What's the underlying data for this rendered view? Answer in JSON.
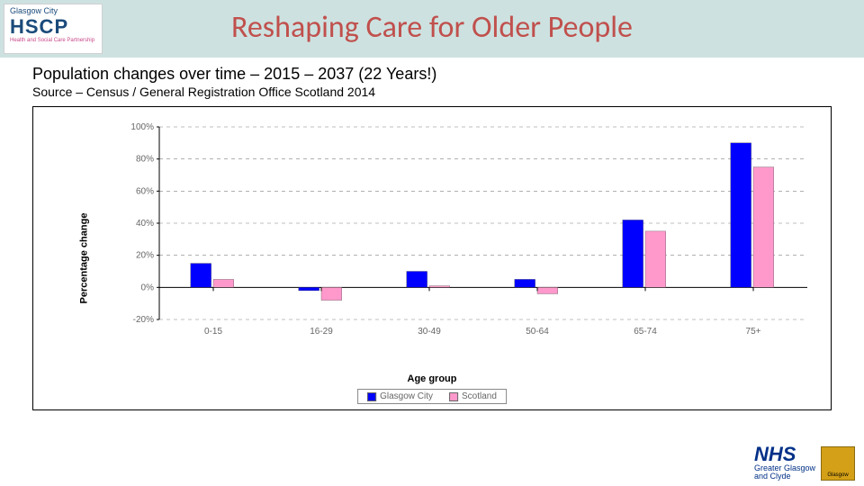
{
  "header": {
    "band_color": "#cde2e0",
    "title": "Reshaping Care for Older People",
    "title_color": "#c0504d",
    "logo_top": "Glasgow City",
    "logo_main": "HSCP",
    "logo_sub": "Health and Social Care Partnership"
  },
  "subtitle": "Population changes over time – 2015 – 2037 (22 Years!)",
  "source": "Source – Census / General Registration Office Scotland 2014",
  "chart": {
    "type": "bar",
    "ylabel": "Percentage change",
    "xlabel": "Age group",
    "ylim": [
      -20,
      100
    ],
    "ytick_step": 20,
    "yticks": [
      "-20%",
      "0%",
      "20%",
      "40%",
      "60%",
      "80%",
      "100%"
    ],
    "categories": [
      "0-15",
      "16-29",
      "30-49",
      "50-64",
      "65-74",
      "75+"
    ],
    "series": [
      {
        "name": "Glasgow City",
        "color": "#0000ff",
        "values": [
          15,
          -2,
          10,
          5,
          42,
          90
        ]
      },
      {
        "name": "Scotland",
        "color": "#ff99cc",
        "values": [
          5,
          -8,
          1,
          -4,
          35,
          75
        ]
      }
    ],
    "grid_color": "#808080",
    "axis_color": "#000000",
    "bar_gap_group": 0.02,
    "bar_group_width": 0.42,
    "background_color": "#ffffff",
    "label_fontsize": 11,
    "tick_fontsize": 10,
    "tick_color": "#666666"
  },
  "legend": {
    "items": [
      "Glasgow City",
      "Scotland"
    ]
  },
  "footer": {
    "nhs_line1": "NHS",
    "nhs_line2": "Greater Glasgow",
    "nhs_line3": "and Clyde",
    "gcc": "Glasgow"
  }
}
